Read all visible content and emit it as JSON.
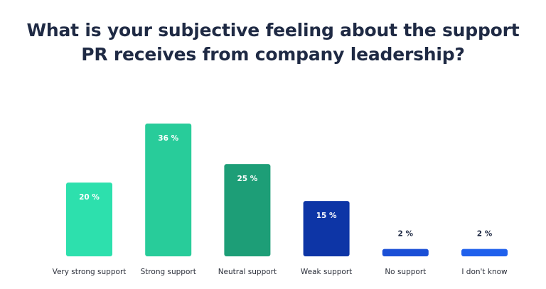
{
  "title": {
    "line1": "What is your subjective feeling about the support",
    "line2": "PR receives from company leadership?"
  },
  "chart_data": {
    "type": "bar",
    "title": "What is your subjective feeling about the support PR receives from company leadership?",
    "categories": [
      "Very strong support",
      "Strong support",
      "Neutral support",
      "Weak support",
      "No support",
      "I don't know"
    ],
    "values": [
      20,
      36,
      25,
      15,
      2,
      2
    ],
    "value_labels": [
      "20 %",
      "36 %",
      "25 %",
      "15 %",
      "2 %",
      "2 %"
    ],
    "colors": [
      "#2de0ad",
      "#28cc9a",
      "#1d9e77",
      "#0d35a6",
      "#1a4fd6",
      "#1f60ec"
    ],
    "unit": "%",
    "ylim": [
      0,
      36
    ],
    "grid": false,
    "legend": "none"
  }
}
